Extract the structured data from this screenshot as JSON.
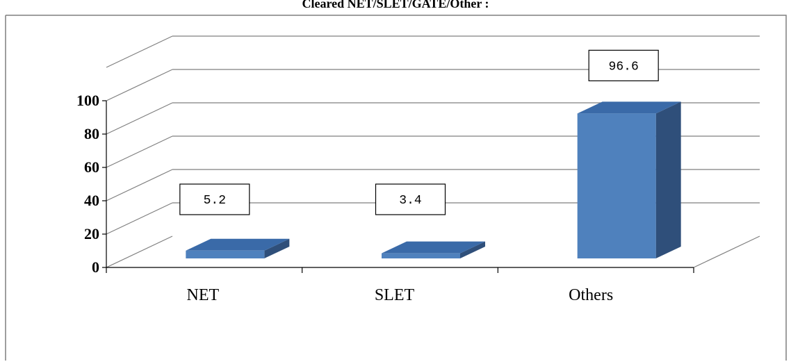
{
  "chart_data": {
    "type": "bar",
    "title": "Cleared NET/SLET/GATE/Other :",
    "categories": [
      "NET",
      "SLET",
      "Others"
    ],
    "values": [
      5.2,
      3.4,
      96.6
    ],
    "data_labels": [
      "5.2",
      "3.4",
      "96.6"
    ],
    "ylim": [
      0,
      100
    ],
    "yticks": [
      0,
      20,
      40,
      60,
      80,
      100
    ],
    "ytick_labels": [
      "0",
      "20",
      "40",
      "60",
      "80",
      "100"
    ],
    "xlabel": "",
    "ylabel": "",
    "grid": true,
    "legend": "none",
    "style": "3d-column",
    "colors": {
      "bar_front": "#4f81bd",
      "bar_top": "#3a6aa8",
      "bar_side": "#2f4f7a",
      "grid": "#7f7f7f",
      "frame": "#7f7f7f"
    }
  }
}
